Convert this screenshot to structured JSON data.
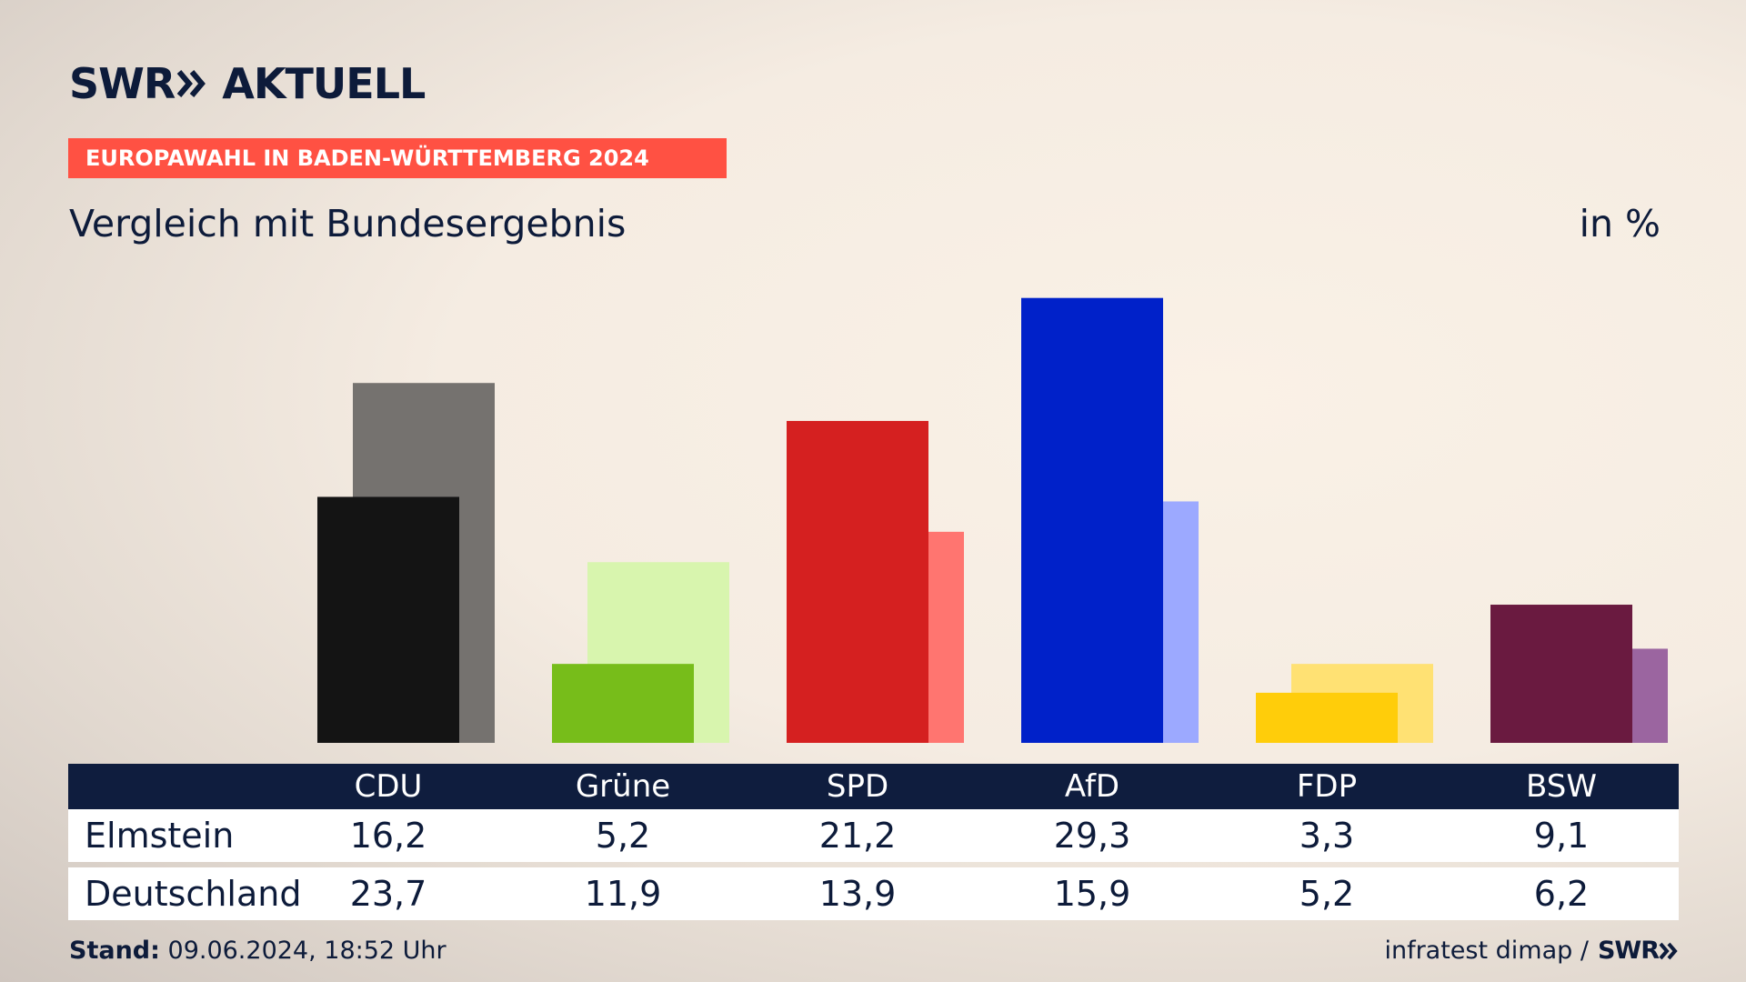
{
  "header": {
    "logo_swr": "SWR",
    "logo_aktuell": "AKTUELL",
    "banner": "EUROPAWAHL IN BADEN-WÜRTTEMBERG 2024",
    "subtitle": "Vergleich mit Bundesergebnis",
    "unit": "in %"
  },
  "colors": {
    "banner": "#ff5143",
    "navy": "#0f1d3e",
    "text": "#0d1b3a"
  },
  "chart_data": {
    "type": "bar",
    "categories": [
      "CDU",
      "Grüne",
      "SPD",
      "AfD",
      "FDP",
      "BSW"
    ],
    "series": [
      {
        "name": "Elmstein",
        "values": [
          16.2,
          5.2,
          21.2,
          29.3,
          3.3,
          9.1
        ],
        "colors": [
          "#141414",
          "#77bd1a",
          "#d52020",
          "#0021c9",
          "#ffcd0a",
          "#6a1a40"
        ]
      },
      {
        "name": "Deutschland",
        "values": [
          23.7,
          11.9,
          13.9,
          15.9,
          5.2,
          6.2
        ],
        "colors": [
          "#75726f",
          "#d8f5ae",
          "#ff7570",
          "#9ca9ff",
          "#ffe173",
          "#9b65a0"
        ]
      }
    ],
    "ylim": [
      0,
      30
    ]
  },
  "table": {
    "headers": [
      "CDU",
      "Grüne",
      "SPD",
      "AfD",
      "FDP",
      "BSW"
    ],
    "rows": [
      {
        "label": "Elmstein",
        "values": [
          "16,2",
          "5,2",
          "21,2",
          "29,3",
          "3,3",
          "9,1"
        ]
      },
      {
        "label": "Deutschland",
        "values": [
          "23,7",
          "11,9",
          "13,9",
          "15,9",
          "5,2",
          "6,2"
        ]
      }
    ]
  },
  "footer": {
    "stand_label": "Stand:",
    "stand_value": "09.06.2024, 18:52 Uhr",
    "source": "infratest dimap /",
    "source_logo": "SWR"
  }
}
